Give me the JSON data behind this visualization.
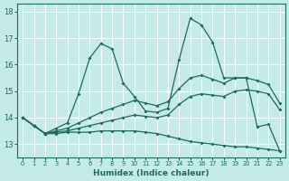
{
  "xlabel": "Humidex (Indice chaleur)",
  "bg_color": "#c5eaea",
  "grid_color": "#ffffff",
  "line_color": "#1a6b60",
  "xlim": [
    -0.5,
    23.5
  ],
  "ylim": [
    12.5,
    18.3
  ],
  "yticks": [
    13,
    14,
    15,
    16,
    17,
    18
  ],
  "xticks": [
    0,
    1,
    2,
    3,
    4,
    5,
    6,
    7,
    8,
    9,
    10,
    11,
    12,
    13,
    14,
    15,
    16,
    17,
    18,
    19,
    20,
    21,
    22,
    23
  ],
  "curve_main_x": [
    0,
    1,
    2,
    3,
    4,
    5,
    6,
    7,
    8,
    9,
    10,
    11,
    12,
    13,
    14,
    15,
    16,
    17,
    18,
    19,
    20,
    21,
    22,
    23
  ],
  "curve_main_y": [
    14.0,
    13.7,
    13.4,
    13.6,
    13.8,
    14.9,
    16.25,
    16.8,
    16.6,
    15.3,
    14.8,
    14.25,
    14.2,
    14.35,
    16.2,
    17.75,
    17.5,
    16.85,
    15.5,
    15.5,
    15.5,
    13.65,
    13.75,
    12.75
  ],
  "curve_rise1_x": [
    0,
    1,
    2,
    3,
    4,
    5,
    6,
    7,
    8,
    9,
    10,
    11,
    12,
    13,
    14,
    15,
    16,
    17,
    18,
    19,
    20,
    21,
    22,
    23
  ],
  "curve_rise1_y": [
    14.0,
    13.7,
    13.4,
    13.5,
    13.6,
    13.8,
    14.0,
    14.2,
    14.35,
    14.5,
    14.65,
    14.55,
    14.45,
    14.6,
    15.1,
    15.5,
    15.6,
    15.45,
    15.3,
    15.5,
    15.5,
    15.4,
    15.25,
    14.55
  ],
  "curve_rise2_x": [
    0,
    1,
    2,
    3,
    4,
    5,
    6,
    7,
    8,
    9,
    10,
    11,
    12,
    13,
    14,
    15,
    16,
    17,
    18,
    19,
    20,
    21,
    22,
    23
  ],
  "curve_rise2_y": [
    14.0,
    13.7,
    13.4,
    13.45,
    13.5,
    13.6,
    13.7,
    13.8,
    13.9,
    14.0,
    14.1,
    14.05,
    14.0,
    14.1,
    14.5,
    14.8,
    14.9,
    14.85,
    14.8,
    15.0,
    15.05,
    15.0,
    14.9,
    14.3
  ],
  "curve_drop_x": [
    0,
    1,
    2,
    3,
    4,
    5,
    6,
    7,
    8,
    9,
    10,
    11,
    12,
    13,
    14,
    15,
    16,
    17,
    18,
    19,
    20,
    21,
    22,
    23
  ],
  "curve_drop_y": [
    14.0,
    13.7,
    13.4,
    13.4,
    13.45,
    13.45,
    13.45,
    13.5,
    13.5,
    13.5,
    13.5,
    13.45,
    13.4,
    13.3,
    13.2,
    13.1,
    13.05,
    13.0,
    12.95,
    12.9,
    12.9,
    12.85,
    12.8,
    12.75
  ]
}
